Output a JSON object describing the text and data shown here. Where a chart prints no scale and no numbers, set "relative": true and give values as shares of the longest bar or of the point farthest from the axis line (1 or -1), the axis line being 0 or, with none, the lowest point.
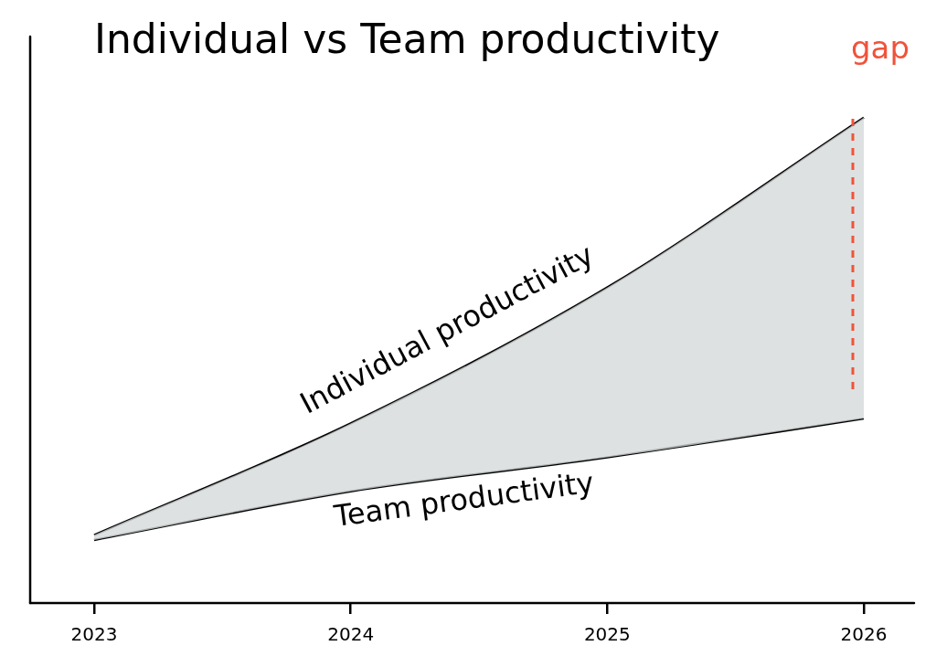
{
  "chart_data": {
    "type": "line",
    "title": "Individual vs Team productivity",
    "relative": true,
    "categories": [
      "2023",
      "2024",
      "2025",
      "2026"
    ],
    "series": [
      {
        "name": "Individual productivity",
        "color": "#000000",
        "values": [
          0.14,
          0.37,
          0.65,
          1
        ],
        "lower": [
          0.13,
          0.23,
          0.3,
          0.38
        ],
        "upper": [
          0.14,
          0.37,
          0.65,
          1
        ]
      },
      {
        "name": "Team productivity",
        "color": "#000000",
        "values": [
          0.13,
          0.23,
          0.3,
          0.38
        ]
      }
    ],
    "ref_lines": [
      {
        "axis": "x",
        "value": "2026",
        "label": "gap",
        "color": "#f0533a",
        "line_style": "dashed"
      }
    ],
    "grid": false,
    "legend": false,
    "marker": "none",
    "line_style": "solid"
  }
}
